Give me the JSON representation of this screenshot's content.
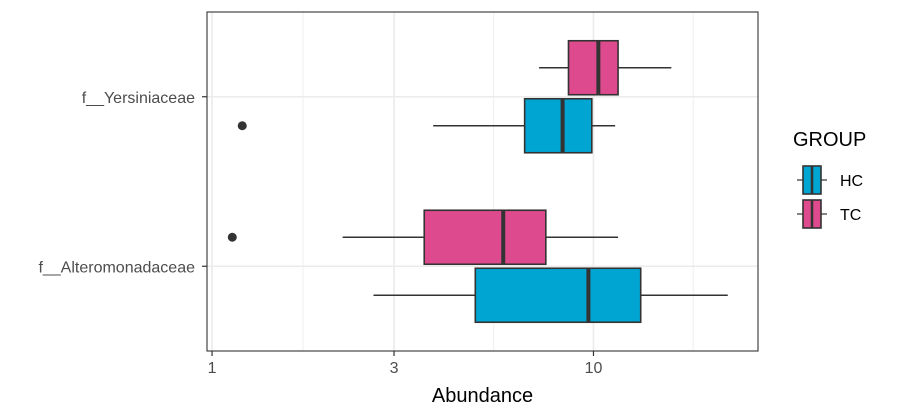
{
  "chart_data": {
    "type": "boxplot",
    "orientation": "horizontal",
    "xlabel": "Abundance",
    "ylabel": "",
    "x_scale": "log10",
    "x_ticks": [
      1,
      3,
      10
    ],
    "xlim": [
      0.97,
      27
    ],
    "grid": true,
    "legend_position": "right",
    "legend_title": "GROUP",
    "categories": [
      "f__Alteromonadaceae",
      "f__Yersiniaceae"
    ],
    "series": [
      {
        "name": "HC",
        "color": "#00A5D2",
        "boxes": [
          {
            "category": "f__Alteromonadaceae",
            "whisker_low": 2.65,
            "q1": 4.9,
            "median": 9.7,
            "q3": 13.3,
            "whisker_high": 22.5,
            "outliers": []
          },
          {
            "category": "f__Yersiniaceae",
            "whisker_low": 3.8,
            "q1": 6.6,
            "median": 8.3,
            "q3": 9.9,
            "whisker_high": 11.4,
            "outliers": [
              1.2
            ]
          }
        ]
      },
      {
        "name": "TC",
        "color": "#DD4A8E",
        "boxes": [
          {
            "category": "f__Alteromonadaceae",
            "whisker_low": 2.2,
            "q1": 3.6,
            "median": 5.8,
            "q3": 7.5,
            "whisker_high": 11.6,
            "outliers": [
              1.13
            ]
          },
          {
            "category": "f__Yersiniaceae",
            "whisker_low": 7.2,
            "q1": 8.6,
            "median": 10.3,
            "q3": 11.6,
            "whisker_high": 16.0,
            "outliers": []
          }
        ]
      }
    ]
  }
}
